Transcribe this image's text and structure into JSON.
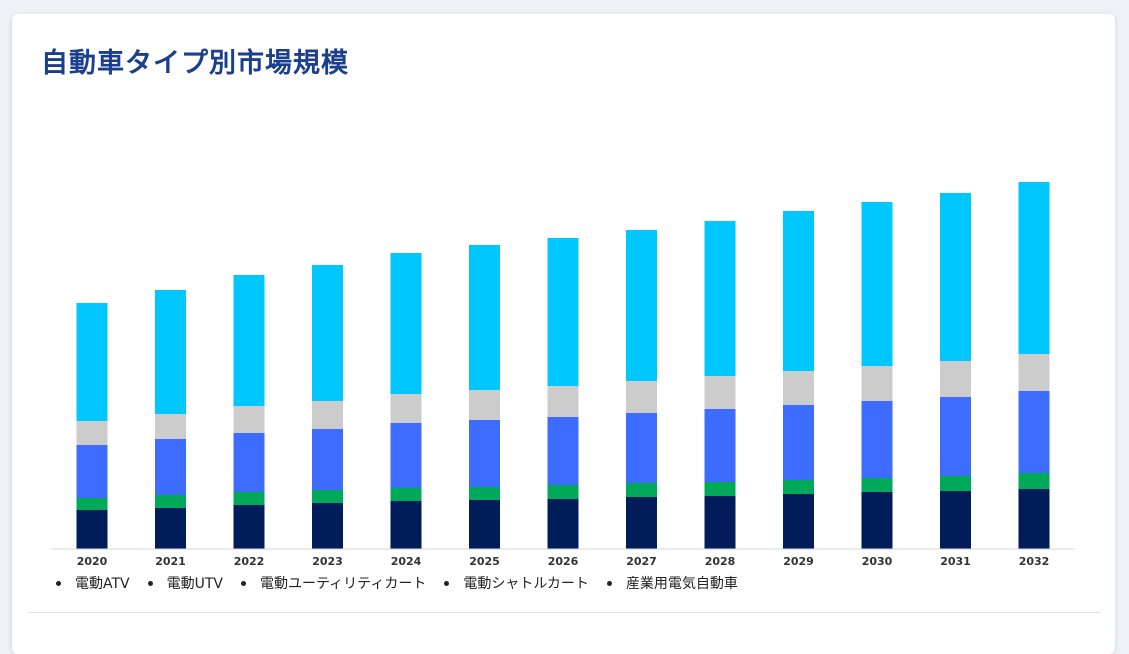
{
  "chart_data": {
    "type": "bar",
    "stacked": true,
    "title": "自動車タイプ別市場規模",
    "categories": [
      "2020",
      "2021",
      "2022",
      "2023",
      "2024",
      "2025",
      "2026",
      "2027",
      "2028",
      "2029",
      "2030",
      "2031",
      "2032"
    ],
    "series": [
      {
        "name": "電動ATV",
        "color": "#001d5a",
        "values": [
          39,
          41,
          44,
          46,
          48,
          49,
          50,
          52,
          53,
          55,
          57,
          58,
          60
        ]
      },
      {
        "name": "電動UTV",
        "color": "#00a859",
        "values": [
          12,
          13,
          13,
          13,
          13,
          13,
          14,
          14,
          14,
          14,
          14,
          15,
          16
        ]
      },
      {
        "name": "電動ユーティリティカート",
        "color": "#3d6cff",
        "values": [
          53,
          56,
          59,
          61,
          65,
          67,
          68,
          70,
          73,
          75,
          77,
          79,
          82
        ]
      },
      {
        "name": "電動シャトルカート",
        "color": "#cccccc",
        "values": [
          24,
          25,
          27,
          28,
          29,
          30,
          31,
          32,
          33,
          34,
          35,
          36,
          37
        ]
      },
      {
        "name": "産業用電気自動車",
        "color": "#00c8ff",
        "values": [
          118,
          124,
          131,
          136,
          141,
          145,
          148,
          151,
          155,
          160,
          164,
          168,
          172
        ]
      }
    ],
    "grid": false,
    "legend_position": "bottom",
    "ylim": [
      0,
      380
    ]
  },
  "legend": {
    "items": [
      "電動ATV",
      "電動UTV",
      "電動ユーティリティカート",
      "電動シャトルカート",
      "産業用電気自動車"
    ]
  }
}
